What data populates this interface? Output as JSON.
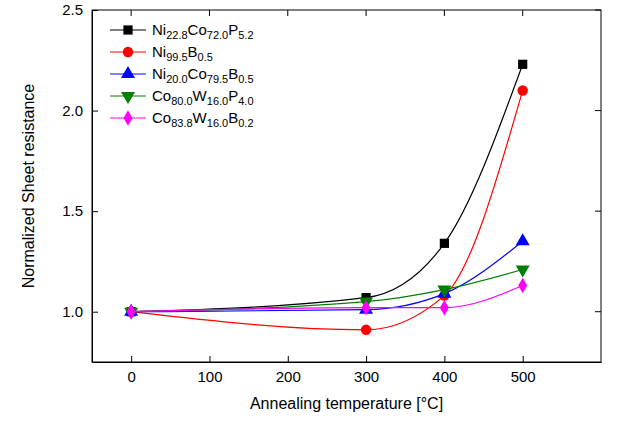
{
  "chart_data": {
    "type": "line",
    "x_label": "Annealing temperature [°C]",
    "y_label": "Normalized Sheet resistance",
    "x": [
      0,
      300,
      400,
      500
    ],
    "xlim": [
      -50,
      600
    ],
    "xticks": [
      0,
      100,
      200,
      300,
      400,
      500
    ],
    "ylim": [
      0.75,
      2.5
    ],
    "yticks": [
      {
        "value": 1.0,
        "label": "1.0"
      },
      {
        "value": 1.5,
        "label": "1.5"
      },
      {
        "value": 2.0,
        "label": "2.0"
      },
      {
        "value": 2.5,
        "label": "2.5"
      }
    ],
    "legend": "upper left",
    "grid": false,
    "series": [
      {
        "name": "Ni22.8Co72.0P5.2",
        "color": "#000000",
        "marker": "square",
        "values": [
          1.0,
          1.07,
          1.34,
          2.23
        ]
      },
      {
        "name": "Ni99.5B0.5",
        "color": "#ff0000",
        "marker": "circle",
        "values": [
          1.0,
          0.91,
          1.08,
          2.1
        ]
      },
      {
        "name": "Ni20.0Co79.5B0.5",
        "color": "#0000ff",
        "marker": "triangle-up",
        "values": [
          1.0,
          1.01,
          1.09,
          1.35
        ]
      },
      {
        "name": "Co80.0W16.0P4.0",
        "color": "#008000",
        "marker": "triangle-down",
        "values": [
          1.0,
          1.05,
          1.11,
          1.21
        ]
      },
      {
        "name": "Co83.8W16.0B0.2",
        "color": "#ff00ff",
        "marker": "diamond",
        "values": [
          1.0,
          1.02,
          1.02,
          1.13
        ]
      }
    ]
  }
}
